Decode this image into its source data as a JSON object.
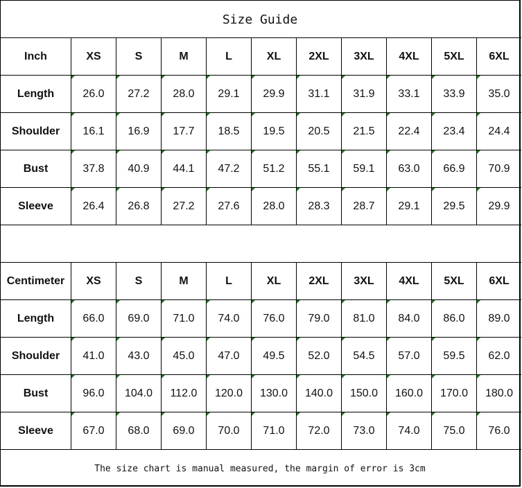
{
  "title": "Size Guide",
  "sizes": [
    "XS",
    "S",
    "M",
    "L",
    "XL",
    "2XL",
    "3XL",
    "4XL",
    "5XL",
    "6XL"
  ],
  "tables": [
    {
      "unit": "Inch",
      "rows": [
        {
          "label": "Length",
          "values": [
            "26.0",
            "27.2",
            "28.0",
            "29.1",
            "29.9",
            "31.1",
            "31.9",
            "33.1",
            "33.9",
            "35.0"
          ]
        },
        {
          "label": "Shoulder",
          "values": [
            "16.1",
            "16.9",
            "17.7",
            "18.5",
            "19.5",
            "20.5",
            "21.5",
            "22.4",
            "23.4",
            "24.4"
          ]
        },
        {
          "label": "Bust",
          "values": [
            "37.8",
            "40.9",
            "44.1",
            "47.2",
            "51.2",
            "55.1",
            "59.1",
            "63.0",
            "66.9",
            "70.9"
          ]
        },
        {
          "label": "Sleeve",
          "values": [
            "26.4",
            "26.8",
            "27.2",
            "27.6",
            "28.0",
            "28.3",
            "28.7",
            "29.1",
            "29.5",
            "29.9"
          ]
        }
      ]
    },
    {
      "unit": "Centimeter",
      "rows": [
        {
          "label": "Length",
          "values": [
            "66.0",
            "69.0",
            "71.0",
            "74.0",
            "76.0",
            "79.0",
            "81.0",
            "84.0",
            "86.0",
            "89.0"
          ]
        },
        {
          "label": "Shoulder",
          "values": [
            "41.0",
            "43.0",
            "45.0",
            "47.0",
            "49.5",
            "52.0",
            "54.5",
            "57.0",
            "59.5",
            "62.0"
          ]
        },
        {
          "label": "Bust",
          "values": [
            "96.0",
            "104.0",
            "112.0",
            "120.0",
            "130.0",
            "140.0",
            "150.0",
            "160.0",
            "170.0",
            "180.0"
          ]
        },
        {
          "label": "Sleeve",
          "values": [
            "67.0",
            "68.0",
            "69.0",
            "70.0",
            "71.0",
            "72.0",
            "73.0",
            "74.0",
            "75.0",
            "76.0"
          ]
        }
      ]
    }
  ],
  "footer": "The size chart is manual measured, the margin of error is 3cm",
  "colors": {
    "cell_marker": "#1a7a1a",
    "border": "#000000"
  }
}
